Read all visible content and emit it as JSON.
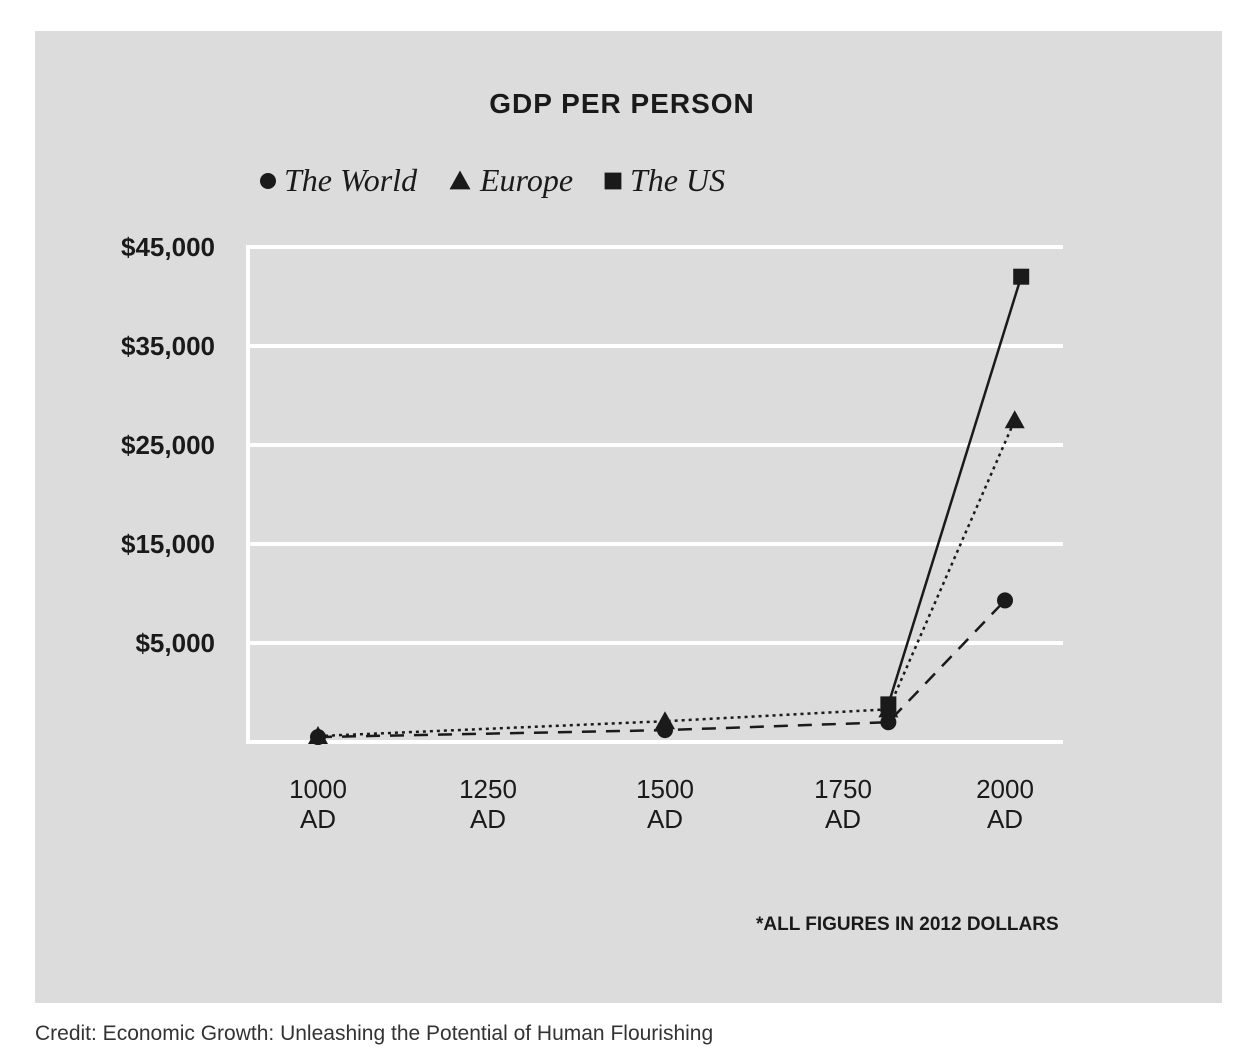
{
  "chart_data": {
    "type": "line",
    "title": "GDP PER PERSON",
    "y_ticks": [
      "$45,000",
      "$35,000",
      "$25,000",
      "$15,000",
      "$5,000"
    ],
    "y_tick_values": [
      45000,
      35000,
      25000,
      15000,
      5000
    ],
    "x_ticks": [
      {
        "year": 1000,
        "line1": "1000",
        "line2": "AD"
      },
      {
        "year": 1250,
        "line1": "1250",
        "line2": "AD"
      },
      {
        "year": 1500,
        "line1": "1500",
        "line2": "AD"
      },
      {
        "year": 1750,
        "line1": "1750",
        "line2": "AD"
      },
      {
        "year": 2000,
        "line1": "2000",
        "line2": "AD"
      }
    ],
    "ylim": [
      -5000,
      45000
    ],
    "grid": true,
    "legend_position": "top",
    "series": [
      {
        "name": "The World",
        "marker": "circle",
        "line_style": "dashed",
        "points": [
          {
            "x": 1000,
            "y": -4500
          },
          {
            "x": 1500,
            "y": -3800
          },
          {
            "x": 1820,
            "y": -3000
          },
          {
            "x": 2000,
            "y": 9300
          }
        ]
      },
      {
        "name": "Europe",
        "marker": "triangle",
        "line_style": "dotted",
        "points": [
          {
            "x": 1000,
            "y": -4400
          },
          {
            "x": 1500,
            "y": -2900
          },
          {
            "x": 1820,
            "y": -1700
          },
          {
            "x": 2015,
            "y": 27500
          }
        ]
      },
      {
        "name": "The US",
        "marker": "square",
        "line_style": "solid",
        "points": [
          {
            "x": 1820,
            "y": -1200
          },
          {
            "x": 2025,
            "y": 42000
          }
        ]
      }
    ],
    "footnote": "*ALL FIGURES IN 2012 DOLLARS"
  },
  "credit": "Credit: Economic Growth: Unleashing the Potential of Human Flourishing",
  "colors": {
    "background": "#dcdcdd",
    "ink": "#1a1a1a",
    "grid": "#ffffff"
  }
}
